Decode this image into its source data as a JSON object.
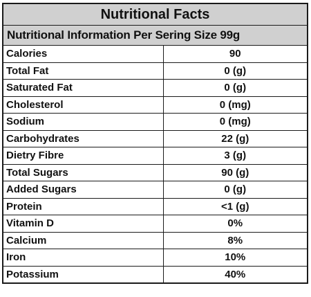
{
  "table": {
    "title": "Nutritional Facts",
    "subtitle": "Nutritional Information Per Sering Size 99g",
    "rows": [
      {
        "label": "Calories",
        "value": "90"
      },
      {
        "label": "Total Fat",
        "value": "0 (g)"
      },
      {
        "label": "Saturated Fat",
        "value": "0 (g)"
      },
      {
        "label": "Cholesterol",
        "value": "0 (mg)"
      },
      {
        "label": "Sodium",
        "value": "0 (mg)"
      },
      {
        "label": "Carbohydrates",
        "value": "22 (g)"
      },
      {
        "label": "Dietry Fibre",
        "value": "3 (g)"
      },
      {
        "label": "Total Sugars",
        "value": "90 (g)"
      },
      {
        "label": "Added Sugars",
        "value": "0 (g)"
      },
      {
        "label": "Protein",
        "value": "<1 (g)"
      },
      {
        "label": "Vitamin D",
        "value": "0%"
      },
      {
        "label": "Calcium",
        "value": "8%"
      },
      {
        "label": "Iron",
        "value": "10%"
      },
      {
        "label": "Potassium",
        "value": "40%"
      }
    ]
  },
  "colors": {
    "header_bg": "#d0d0d0",
    "border": "#1a1a1a"
  }
}
